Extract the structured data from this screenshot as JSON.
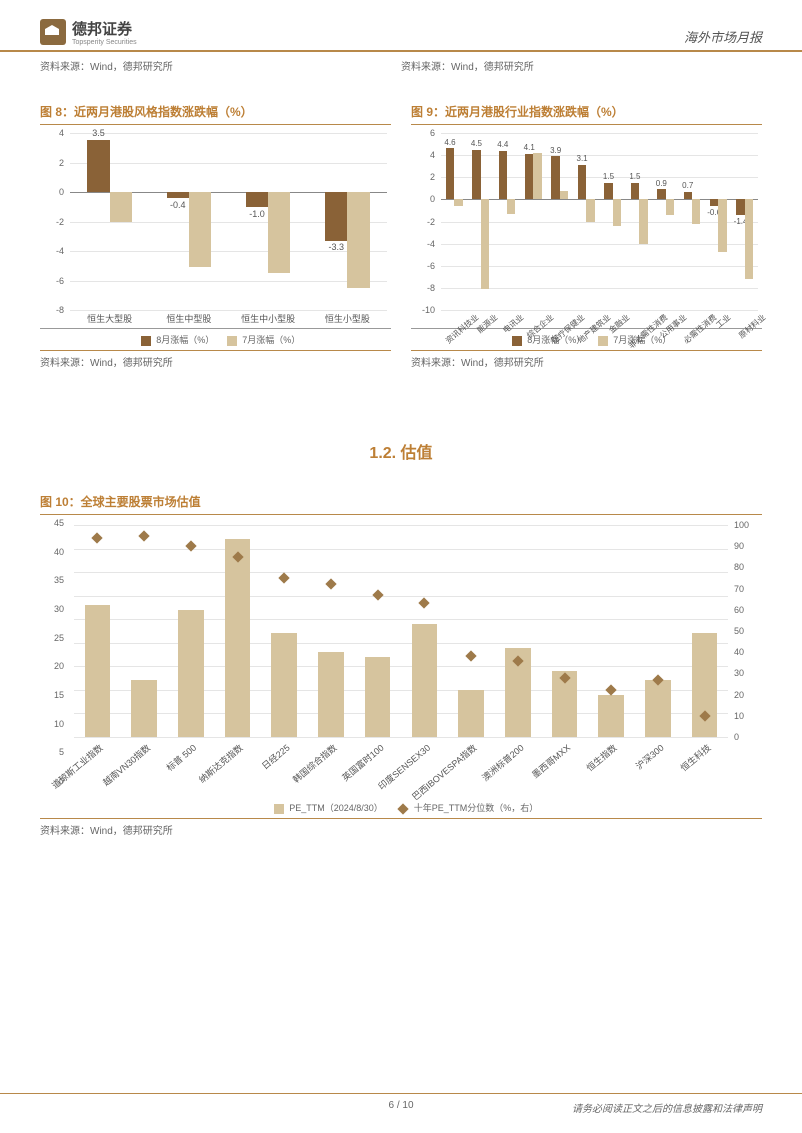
{
  "header": {
    "brand_cn": "德邦证券",
    "brand_en": "Topsperity Securities",
    "report_type": "海外市场月报"
  },
  "top_sources": {
    "left": "资料来源：Wind，德邦研究所",
    "right": "资料来源：Wind，德邦研究所"
  },
  "fig8": {
    "title": "图 8：近两月港股风格指数涨跌幅（%）",
    "type": "bar",
    "y_min": -8,
    "y_max": 4,
    "y_step": 2,
    "categories": [
      "恒生大型股",
      "恒生中型股",
      "恒生中小型股",
      "恒生小型股"
    ],
    "series_aug": {
      "label": "8月涨幅（%）",
      "color": "#8a6237",
      "values": [
        3.5,
        -0.4,
        -1.0,
        -3.3
      ]
    },
    "series_jul": {
      "label": "7月涨幅（%）",
      "color": "#d6c49e",
      "values": [
        -2.0,
        -5.1,
        -5.5,
        -6.5
      ]
    },
    "bar_labels": [
      "3.5",
      "-0.4",
      "-1.0",
      "-3.3"
    ],
    "source": "资料来源：Wind，德邦研究所"
  },
  "fig9": {
    "title": "图 9：近两月港股行业指数涨跌幅（%）",
    "type": "bar",
    "y_min": -10,
    "y_max": 6,
    "y_step": 2,
    "categories": [
      "资讯科技业",
      "能源业",
      "电讯业",
      "综合企业",
      "医疗保健业",
      "地产建筑业",
      "金融业",
      "非必需性消费",
      "公用事业",
      "必需性消费",
      "工业",
      "原材料业"
    ],
    "series_aug": {
      "label": "8月涨幅（%）",
      "color": "#8a6237",
      "values": [
        4.6,
        4.5,
        4.4,
        4.1,
        3.9,
        3.1,
        1.5,
        1.5,
        0.9,
        0.7,
        -0.6,
        -1.4
      ]
    },
    "series_jul": {
      "label": "7月涨幅（%）",
      "color": "#d6c49e",
      "values": [
        -0.6,
        -8.1,
        -1.3,
        4.2,
        0.8,
        -2.0,
        -2.4,
        -4.0,
        -1.4,
        -2.2,
        -4.8,
        -7.2
      ]
    },
    "bar_labels": [
      "4.6",
      "4.5",
      "4.4",
      "4.1",
      "3.9",
      "3.1",
      "1.5",
      "1.5",
      "0.9",
      "0.7",
      "-0.6",
      "-1.4"
    ],
    "source": "资料来源：Wind，德邦研究所"
  },
  "section_1_2": "1.2. 估值",
  "fig10": {
    "title": "图 10：全球主要股票市场估值",
    "type": "bar+scatter",
    "y_left": {
      "min": 0,
      "max": 45,
      "step": 5
    },
    "y_right": {
      "min": 0,
      "max": 100,
      "step": 10
    },
    "categories": [
      "道琼斯工业指数",
      "越南VN30指数",
      "标普 500",
      "纳斯达克指数",
      "日经225",
      "韩国综合指数",
      "英国富时100",
      "印度SENSEX30",
      "巴西IBOVESPA指数",
      "澳洲标普200",
      "墨西哥MXX",
      "恒生指数",
      "沪深300",
      "恒生科技"
    ],
    "pe_ttm": {
      "label": "PE_TTM（2024/8/30）",
      "color": "#d6c49e",
      "values": [
        28,
        12,
        27,
        42,
        22,
        18,
        17,
        24,
        10,
        19,
        14,
        9,
        12,
        22
      ]
    },
    "percentile": {
      "label": "十年PE_TTM分位数（%，右）",
      "color": "#9e7a4a",
      "values": [
        94,
        95,
        90,
        85,
        75,
        72,
        67,
        63,
        38,
        36,
        28,
        22,
        27,
        10
      ]
    },
    "source": "资料来源：Wind，德邦研究所"
  },
  "footer": {
    "page": "6 / 10",
    "disclaimer": "请务必阅读正文之后的信息披露和法律声明"
  }
}
